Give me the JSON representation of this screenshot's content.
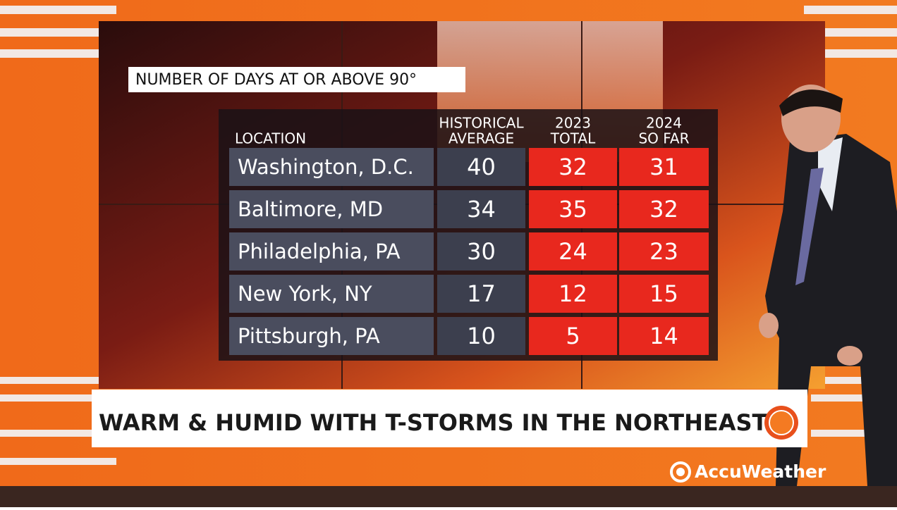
{
  "graphic": {
    "title": "NUMBER OF DAYS AT OR ABOVE 90°"
  },
  "table": {
    "headers": [
      [
        "LOCATION"
      ],
      [
        "HISTORICAL",
        "AVERAGE"
      ],
      [
        "2023",
        "TOTAL"
      ],
      [
        "2024",
        "SO FAR"
      ]
    ],
    "rows": [
      [
        "Washington, D.C.",
        40,
        32,
        31
      ],
      [
        "Baltimore, MD",
        34,
        35,
        32
      ],
      [
        "Philadelphia, PA",
        30,
        24,
        23
      ],
      [
        "New York, NY",
        17,
        12,
        15
      ],
      [
        "Pittsburgh, PA",
        10,
        5,
        14
      ]
    ]
  },
  "banner": {
    "headline": "WARM & HUMID WITH T-STORMS IN THE NORTHEAST"
  },
  "logo": {
    "text": "AccuWeather"
  }
}
